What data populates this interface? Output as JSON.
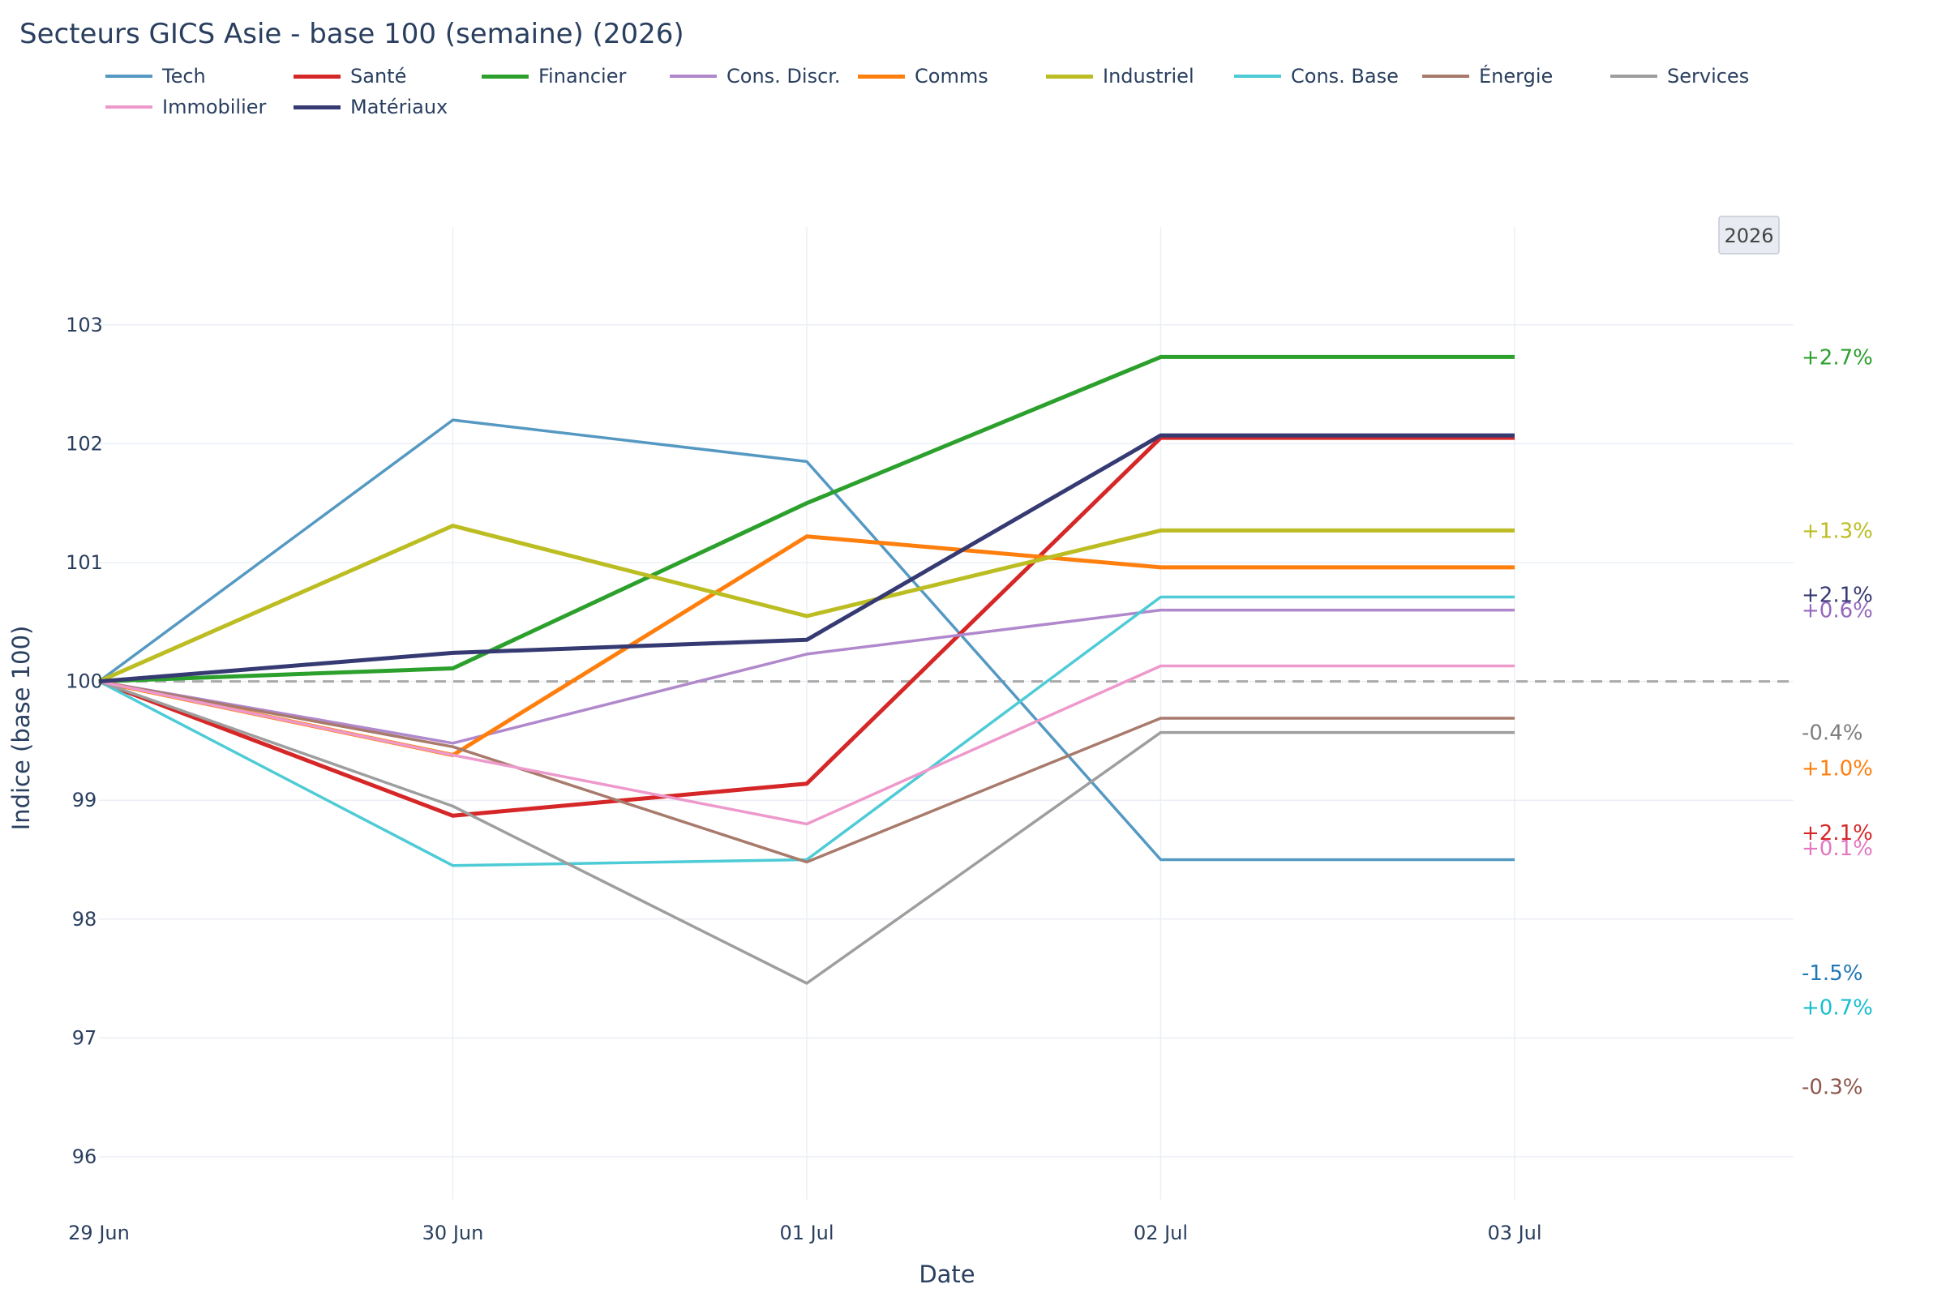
{
  "title": "Secteurs GICS Asie - base 100 (semaine) (2026)",
  "badge": "2026",
  "chart_data": {
    "type": "line",
    "title": "Secteurs GICS Asie - base 100 (semaine) (2026)",
    "xlabel": "Date",
    "ylabel": "Indice (base 100)",
    "x": [
      "29 Jun",
      "30 Jun",
      "01 Jul",
      "02 Jul",
      "03 Jul"
    ],
    "ylim": [
      95.6,
      103.9
    ],
    "yticks": [
      96,
      97,
      98,
      99,
      100,
      101,
      102,
      103
    ],
    "reference_line": 100,
    "grid": true,
    "legend": "top",
    "series": [
      {
        "name": "Tech",
        "color": "#5599c2",
        "width": 3.5,
        "values": [
          100,
          102.2,
          101.85,
          98.5,
          98.5
        ]
      },
      {
        "name": "Santé",
        "color": "#d62728",
        "width": 5,
        "values": [
          100,
          98.87,
          99.14,
          102.05,
          102.05
        ]
      },
      {
        "name": "Financier",
        "color": "#2ca02c",
        "width": 5,
        "values": [
          100,
          100.11,
          101.5,
          102.73,
          102.73
        ]
      },
      {
        "name": "Cons. Discr.",
        "color": "#b088cc",
        "width": 3.5,
        "values": [
          100,
          99.48,
          100.23,
          100.6,
          100.6
        ]
      },
      {
        "name": "Comms",
        "color": "#ff7f0e",
        "width": 5,
        "values": [
          100,
          99.38,
          101.22,
          100.96,
          100.96
        ]
      },
      {
        "name": "Industriel",
        "color": "#bcbd22",
        "width": 5,
        "values": [
          100,
          101.31,
          100.55,
          101.27,
          101.27
        ]
      },
      {
        "name": "Cons. Base",
        "color": "#4dcbd6",
        "width": 3.5,
        "values": [
          100,
          98.45,
          98.5,
          100.71,
          100.71
        ]
      },
      {
        "name": "Énergie",
        "color": "#a87a6c",
        "width": 3.5,
        "values": [
          100,
          99.45,
          98.48,
          99.69,
          99.69
        ]
      },
      {
        "name": "Services",
        "color": "#9e9e9e",
        "width": 3.5,
        "values": [
          100,
          98.95,
          97.46,
          99.57,
          99.57
        ]
      },
      {
        "name": "Immobilier",
        "color": "#ee99cc",
        "width": 3.5,
        "values": [
          100,
          99.38,
          98.8,
          100.13,
          100.13
        ]
      },
      {
        "name": "Matériaux",
        "color": "#363a73",
        "width": 5,
        "values": [
          100,
          100.24,
          100.35,
          102.07,
          102.07
        ]
      }
    ],
    "end_labels": [
      {
        "text": "+2.7%",
        "color": "#2ca02c",
        "y": 102.73
      },
      {
        "text": "+1.3%",
        "color": "#bcbd22",
        "y": 101.27
      },
      {
        "text": "+2.1%",
        "color": "#363a73",
        "y": 100.73
      },
      {
        "text": "+0.6%",
        "color": "#9467bd",
        "y": 100.6
      },
      {
        "text": "-0.4%",
        "color": "#7f7f7f",
        "y": 99.57
      },
      {
        "text": "+1.0%",
        "color": "#ff7f0e",
        "y": 99.27
      },
      {
        "text": "+2.1%",
        "color": "#d62728",
        "y": 98.73
      },
      {
        "text": "+0.1%",
        "color": "#e377c2",
        "y": 98.6
      },
      {
        "text": "-1.5%",
        "color": "#1f77b4",
        "y": 97.55
      },
      {
        "text": "+0.7%",
        "color": "#17becf",
        "y": 97.26
      },
      {
        "text": "-0.3%",
        "color": "#8c564b",
        "y": 96.59
      }
    ]
  }
}
